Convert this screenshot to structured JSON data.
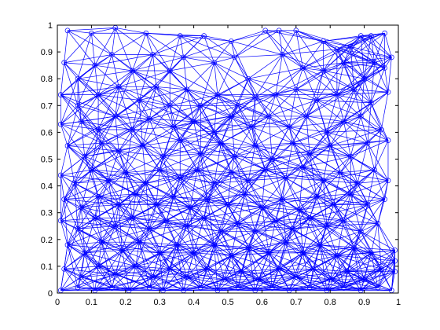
{
  "chart_data": {
    "type": "scatter",
    "subtype": "network graph (nodes connected by edges)",
    "title": "",
    "xlabel": "",
    "ylabel": "",
    "xlim": [
      0,
      1
    ],
    "ylim": [
      0,
      1
    ],
    "xticks": [
      "0",
      "0.1",
      "0.2",
      "0.3",
      "0.4",
      "0.5",
      "0.6",
      "0.7",
      "0.8",
      "0.9",
      "1"
    ],
    "yticks": [
      "0",
      "0.1",
      "0.2",
      "0.3",
      "0.4",
      "0.5",
      "0.6",
      "0.7",
      "0.8",
      "0.9",
      "1"
    ],
    "grid": false,
    "legend": "none",
    "color": "#0000ff",
    "marker": "open circle",
    "connection_rule": "edges join every pair of nodes closer than 0.18 units",
    "series": [
      {
        "nodes": [
          [
            0.03,
            0.98
          ],
          [
            0.1,
            0.97
          ],
          [
            0.17,
            0.99
          ],
          [
            0.26,
            0.97
          ],
          [
            0.36,
            0.96
          ],
          [
            0.43,
            0.96
          ],
          [
            0.51,
            0.94
          ],
          [
            0.61,
            0.98
          ],
          [
            0.65,
            0.98
          ],
          [
            0.7,
            0.98
          ],
          [
            0.78,
            0.94
          ],
          [
            0.82,
            0.91
          ],
          [
            0.86,
            0.92
          ],
          [
            0.89,
            0.96
          ],
          [
            0.92,
            0.96
          ],
          [
            0.96,
            0.97
          ],
          [
            0.98,
            0.88
          ],
          [
            0.96,
            0.84
          ],
          [
            0.02,
            0.86
          ],
          [
            0.06,
            0.8
          ],
          [
            0.11,
            0.85
          ],
          [
            0.16,
            0.89
          ],
          [
            0.22,
            0.83
          ],
          [
            0.28,
            0.89
          ],
          [
            0.33,
            0.83
          ],
          [
            0.37,
            0.88
          ],
          [
            0.46,
            0.86
          ],
          [
            0.52,
            0.88
          ],
          [
            0.56,
            0.8
          ],
          [
            0.66,
            0.89
          ],
          [
            0.72,
            0.84
          ],
          [
            0.78,
            0.83
          ],
          [
            0.84,
            0.86
          ],
          [
            0.9,
            0.8
          ],
          [
            0.93,
            0.86
          ],
          [
            0.01,
            0.74
          ],
          [
            0.06,
            0.7
          ],
          [
            0.12,
            0.74
          ],
          [
            0.18,
            0.77
          ],
          [
            0.24,
            0.72
          ],
          [
            0.29,
            0.77
          ],
          [
            0.33,
            0.7
          ],
          [
            0.38,
            0.76
          ],
          [
            0.42,
            0.7
          ],
          [
            0.47,
            0.74
          ],
          [
            0.53,
            0.7
          ],
          [
            0.58,
            0.73
          ],
          [
            0.64,
            0.74
          ],
          [
            0.7,
            0.76
          ],
          [
            0.76,
            0.72
          ],
          [
            0.82,
            0.74
          ],
          [
            0.87,
            0.76
          ],
          [
            0.92,
            0.71
          ],
          [
            0.97,
            0.75
          ],
          [
            0.01,
            0.63
          ],
          [
            0.07,
            0.64
          ],
          [
            0.12,
            0.61
          ],
          [
            0.17,
            0.66
          ],
          [
            0.22,
            0.61
          ],
          [
            0.27,
            0.65
          ],
          [
            0.34,
            0.62
          ],
          [
            0.4,
            0.64
          ],
          [
            0.46,
            0.6
          ],
          [
            0.51,
            0.66
          ],
          [
            0.57,
            0.62
          ],
          [
            0.62,
            0.66
          ],
          [
            0.68,
            0.62
          ],
          [
            0.73,
            0.66
          ],
          [
            0.79,
            0.6
          ],
          [
            0.84,
            0.64
          ],
          [
            0.89,
            0.66
          ],
          [
            0.95,
            0.61
          ],
          [
            0.03,
            0.55
          ],
          [
            0.08,
            0.51
          ],
          [
            0.13,
            0.56
          ],
          [
            0.18,
            0.53
          ],
          [
            0.25,
            0.55
          ],
          [
            0.31,
            0.51
          ],
          [
            0.36,
            0.57
          ],
          [
            0.42,
            0.52
          ],
          [
            0.48,
            0.56
          ],
          [
            0.52,
            0.51
          ],
          [
            0.58,
            0.55
          ],
          [
            0.63,
            0.5
          ],
          [
            0.69,
            0.56
          ],
          [
            0.74,
            0.52
          ],
          [
            0.8,
            0.55
          ],
          [
            0.86,
            0.51
          ],
          [
            0.91,
            0.56
          ],
          [
            0.97,
            0.57
          ],
          [
            0.01,
            0.44
          ],
          [
            0.05,
            0.41
          ],
          [
            0.1,
            0.46
          ],
          [
            0.15,
            0.42
          ],
          [
            0.2,
            0.45
          ],
          [
            0.26,
            0.41
          ],
          [
            0.3,
            0.46
          ],
          [
            0.36,
            0.43
          ],
          [
            0.41,
            0.46
          ],
          [
            0.46,
            0.41
          ],
          [
            0.51,
            0.45
          ],
          [
            0.56,
            0.42
          ],
          [
            0.61,
            0.46
          ],
          [
            0.67,
            0.43
          ],
          [
            0.72,
            0.47
          ],
          [
            0.78,
            0.42
          ],
          [
            0.83,
            0.45
          ],
          [
            0.88,
            0.41
          ],
          [
            0.93,
            0.46
          ],
          [
            0.97,
            0.42
          ],
          [
            0.02,
            0.35
          ],
          [
            0.07,
            0.32
          ],
          [
            0.12,
            0.36
          ],
          [
            0.18,
            0.33
          ],
          [
            0.23,
            0.37
          ],
          [
            0.29,
            0.33
          ],
          [
            0.34,
            0.36
          ],
          [
            0.39,
            0.32
          ],
          [
            0.44,
            0.35
          ],
          [
            0.5,
            0.33
          ],
          [
            0.55,
            0.37
          ],
          [
            0.6,
            0.32
          ],
          [
            0.66,
            0.35
          ],
          [
            0.71,
            0.31
          ],
          [
            0.76,
            0.36
          ],
          [
            0.81,
            0.33
          ],
          [
            0.86,
            0.37
          ],
          [
            0.91,
            0.33
          ],
          [
            0.96,
            0.35
          ],
          [
            0.01,
            0.27
          ],
          [
            0.06,
            0.24
          ],
          [
            0.11,
            0.28
          ],
          [
            0.17,
            0.25
          ],
          [
            0.22,
            0.28
          ],
          [
            0.27,
            0.24
          ],
          [
            0.32,
            0.27
          ],
          [
            0.38,
            0.25
          ],
          [
            0.43,
            0.28
          ],
          [
            0.48,
            0.23
          ],
          [
            0.53,
            0.26
          ],
          [
            0.58,
            0.23
          ],
          [
            0.64,
            0.27
          ],
          [
            0.69,
            0.24
          ],
          [
            0.74,
            0.28
          ],
          [
            0.79,
            0.25
          ],
          [
            0.84,
            0.27
          ],
          [
            0.89,
            0.23
          ],
          [
            0.94,
            0.26
          ],
          [
            0.03,
            0.18
          ],
          [
            0.08,
            0.15
          ],
          [
            0.13,
            0.19
          ],
          [
            0.19,
            0.16
          ],
          [
            0.24,
            0.19
          ],
          [
            0.3,
            0.15
          ],
          [
            0.35,
            0.18
          ],
          [
            0.4,
            0.15
          ],
          [
            0.46,
            0.18
          ],
          [
            0.51,
            0.14
          ],
          [
            0.56,
            0.17
          ],
          [
            0.62,
            0.15
          ],
          [
            0.67,
            0.19
          ],
          [
            0.72,
            0.15
          ],
          [
            0.77,
            0.18
          ],
          [
            0.82,
            0.14
          ],
          [
            0.87,
            0.17
          ],
          [
            0.92,
            0.15
          ],
          [
            0.99,
            0.16
          ],
          [
            0.02,
            0.09
          ],
          [
            0.07,
            0.06
          ],
          [
            0.12,
            0.1
          ],
          [
            0.17,
            0.07
          ],
          [
            0.23,
            0.1
          ],
          [
            0.28,
            0.06
          ],
          [
            0.33,
            0.09
          ],
          [
            0.38,
            0.06
          ],
          [
            0.44,
            0.09
          ],
          [
            0.49,
            0.05
          ],
          [
            0.54,
            0.08
          ],
          [
            0.59,
            0.05
          ],
          [
            0.65,
            0.09
          ],
          [
            0.7,
            0.06
          ],
          [
            0.75,
            0.09
          ],
          [
            0.8,
            0.05
          ],
          [
            0.85,
            0.08
          ],
          [
            0.9,
            0.05
          ],
          [
            0.95,
            0.09
          ],
          [
            0.99,
            0.12
          ],
          [
            0.99,
            0.08
          ],
          [
            0.01,
            0.01
          ],
          [
            0.06,
            0.02
          ],
          [
            0.11,
            0.01
          ],
          [
            0.16,
            0.02
          ],
          [
            0.21,
            0.01
          ],
          [
            0.27,
            0.02
          ],
          [
            0.31,
            0.01
          ],
          [
            0.37,
            0.01
          ],
          [
            0.42,
            0.02
          ],
          [
            0.47,
            0.01
          ],
          [
            0.53,
            0.02
          ],
          [
            0.58,
            0.01
          ],
          [
            0.63,
            0.02
          ],
          [
            0.68,
            0.01
          ],
          [
            0.74,
            0.02
          ],
          [
            0.79,
            0.01
          ],
          [
            0.84,
            0.02
          ],
          [
            0.89,
            0.01
          ],
          [
            0.94,
            0.02
          ],
          [
            0.98,
            0.01
          ]
        ]
      }
    ]
  }
}
